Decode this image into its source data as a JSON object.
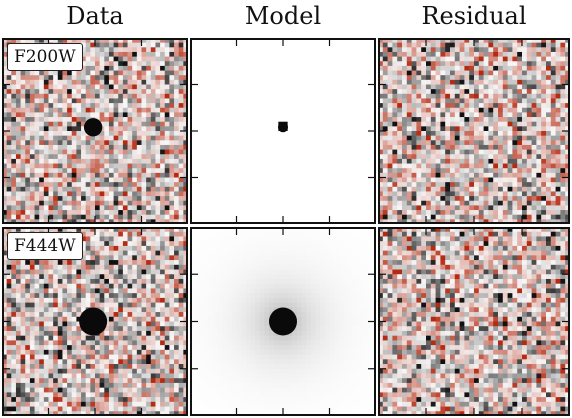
{
  "column_titles": [
    "Data",
    "Model",
    "Residual"
  ],
  "rows": [
    {
      "filter": "F200W",
      "source": "compact point source",
      "relative_source_size": 0.4
    },
    {
      "filter": "F444W",
      "source": "compact point source with extended halo",
      "relative_source_size": 1.0
    }
  ],
  "panel_types": [
    "data",
    "model",
    "residual"
  ],
  "colormap": {
    "negative": "#111111",
    "neutral": "#f7f7f7",
    "positive": "#b52a12"
  }
}
